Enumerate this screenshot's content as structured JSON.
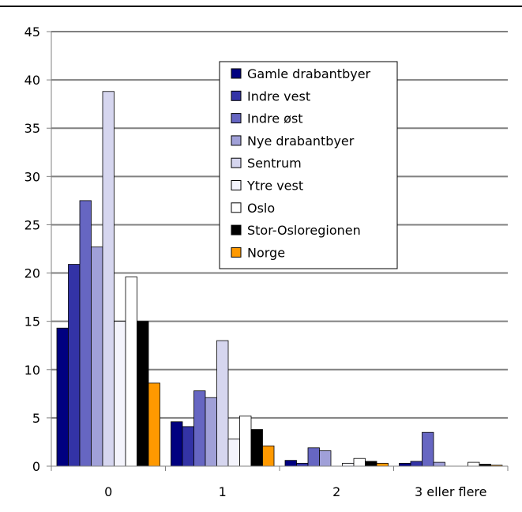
{
  "chart_data": {
    "type": "bar",
    "title": "",
    "xlabel": "",
    "ylabel": "",
    "ylim": [
      0,
      45
    ],
    "yticks": [
      0,
      5,
      10,
      15,
      20,
      25,
      30,
      35,
      40,
      45
    ],
    "grid": true,
    "legend_position": "top-center",
    "categories": [
      "0",
      "1",
      "2",
      "3 eller flere"
    ],
    "series": [
      {
        "name": "Gamle drabantbyer",
        "color": "#000080",
        "values": [
          14.3,
          4.6,
          0.6,
          0.3
        ]
      },
      {
        "name": "Indre vest",
        "color": "#3333a6",
        "values": [
          20.9,
          4.1,
          0.3,
          0.5
        ]
      },
      {
        "name": "Indre øst",
        "color": "#6666c2",
        "values": [
          27.5,
          7.8,
          1.9,
          3.5
        ]
      },
      {
        "name": "Nye drabantbyer",
        "color": "#a0a0d8",
        "values": [
          22.7,
          7.1,
          1.6,
          0.4
        ]
      },
      {
        "name": "Sentrum",
        "color": "#d6d6ef",
        "values": [
          38.8,
          13.0,
          0.0,
          0.0
        ]
      },
      {
        "name": "Ytre vest",
        "color": "#f4f4fc",
        "values": [
          15.0,
          2.8,
          0.3,
          0.0
        ]
      },
      {
        "name": "Oslo",
        "color": "#ffffff",
        "values": [
          19.6,
          5.2,
          0.8,
          0.4
        ]
      },
      {
        "name": "Stor-Osloregionen",
        "color": "#000000",
        "values": [
          15.0,
          3.8,
          0.5,
          0.2
        ]
      },
      {
        "name": "Norge",
        "color": "#ff9900",
        "values": [
          8.6,
          2.1,
          0.3,
          0.1
        ]
      }
    ]
  }
}
